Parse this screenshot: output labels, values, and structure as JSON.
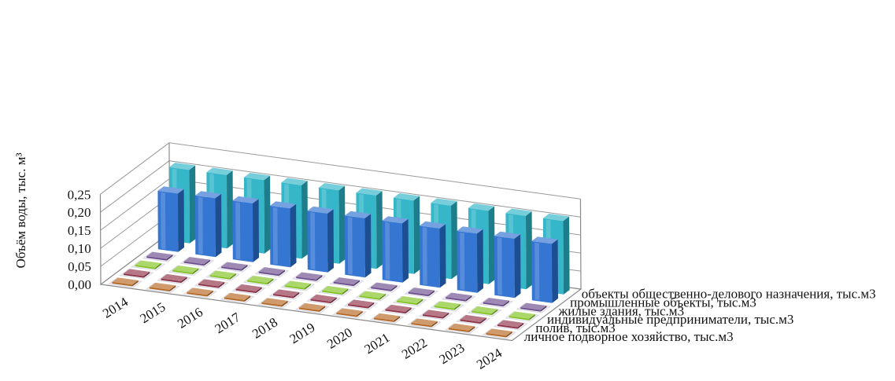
{
  "chart_data": {
    "type": "bar",
    "subtype": "3d-column",
    "ylabel": "Объём воды, тыс. м³",
    "ylim": [
      0,
      0.25
    ],
    "yticks": [
      "0,00",
      "0,05",
      "0,10",
      "0,15",
      "0,20",
      "0,25"
    ],
    "categories": [
      "2014",
      "2015",
      "2016",
      "2017",
      "2018",
      "2019",
      "2020",
      "2021",
      "2022",
      "2023",
      "2024"
    ],
    "legend_position": "right-depth-axis",
    "series": [
      {
        "name": "личное подворное хозяйство, тыс.м3",
        "color": "#b5651d",
        "values": [
          0.001,
          0.001,
          0.001,
          0.001,
          0.001,
          0.001,
          0.001,
          0.001,
          0.001,
          0.001,
          0.001
        ]
      },
      {
        "name": "полив, тыс.м3",
        "color": "#8e2f45",
        "values": [
          0.001,
          0.001,
          0.001,
          0.001,
          0.001,
          0.001,
          0.001,
          0.001,
          0.001,
          0.001,
          0.001
        ]
      },
      {
        "name": "индивидуальные предприниматели, тыс.м3",
        "color": "#7fc31c",
        "values": [
          0.001,
          0.001,
          0.001,
          0.001,
          0.001,
          0.001,
          0.001,
          0.001,
          0.001,
          0.001,
          0.001
        ]
      },
      {
        "name": "жилые здания, тыс.м3",
        "color": "#6a4a8c",
        "values": [
          0.001,
          0.001,
          0.001,
          0.001,
          0.001,
          0.001,
          0.001,
          0.001,
          0.001,
          0.001,
          0.001
        ]
      },
      {
        "name": "промышленные объекты, тыс.м3",
        "color": "#2a6fd0",
        "values": [
          0.162,
          0.163,
          0.163,
          0.163,
          0.163,
          0.164,
          0.164,
          0.164,
          0.164,
          0.164,
          0.164
        ]
      },
      {
        "name": "объекты общественно-делового назначения, тыс.м3",
        "color": "#2bb3c6",
        "values": [
          0.204,
          0.204,
          0.204,
          0.204,
          0.204,
          0.204,
          0.204,
          0.204,
          0.204,
          0.204,
          0.204
        ]
      }
    ]
  }
}
